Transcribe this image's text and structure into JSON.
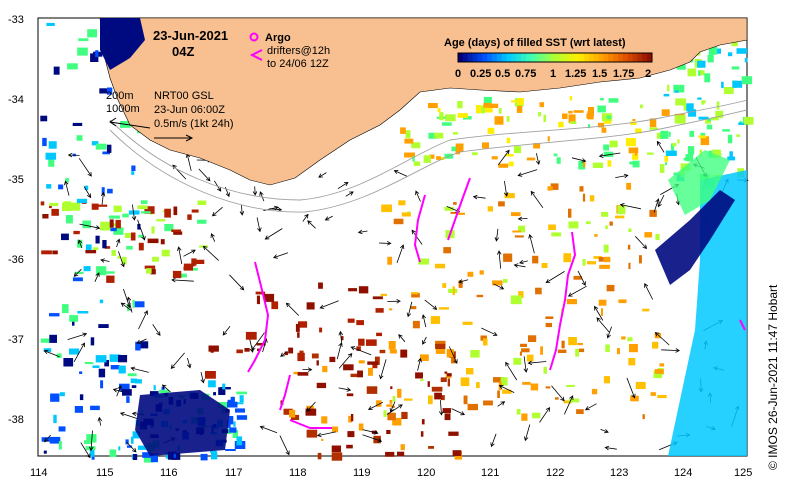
{
  "title": {
    "date": "23-Jun-2021",
    "time": "04Z"
  },
  "legend": {
    "argo_label": "Argo",
    "drifters_label_1": "drifters@12h",
    "drifters_label_2": "to 24/06 12Z",
    "colorbar_title": "Age (days) of filled SST (wrt latest)",
    "colorbar_ticks": [
      "0",
      "0.25",
      "0.5",
      "0.75",
      "1",
      "1.25",
      "1.5",
      "1.75",
      "2"
    ],
    "colorbar_colors": [
      "#00007a",
      "#0050ff",
      "#00c8ff",
      "#40ffb0",
      "#b0ff30",
      "#ffee00",
      "#ffa000",
      "#e05000",
      "#901000"
    ]
  },
  "annotations": {
    "iso_200": "200m",
    "iso_1000": "1000m",
    "product": "NRT00 GSL",
    "product_time": "23-Jun 06:00Z",
    "scale": "0.5m/s (1kt 24h)"
  },
  "axes": {
    "x_ticks": [
      "114",
      "115",
      "116",
      "117",
      "118",
      "119",
      "120",
      "121",
      "122",
      "123",
      "124",
      "125"
    ],
    "y_ticks": [
      "-33",
      "-34",
      "-35",
      "-36",
      "-37",
      "-38"
    ]
  },
  "credit": "© IMOS 26-Jun-2021 11:47 Hobart",
  "colors": {
    "land": "#f8c090",
    "drifter": "#ff00ff",
    "deep_blue": "#000a80"
  }
}
